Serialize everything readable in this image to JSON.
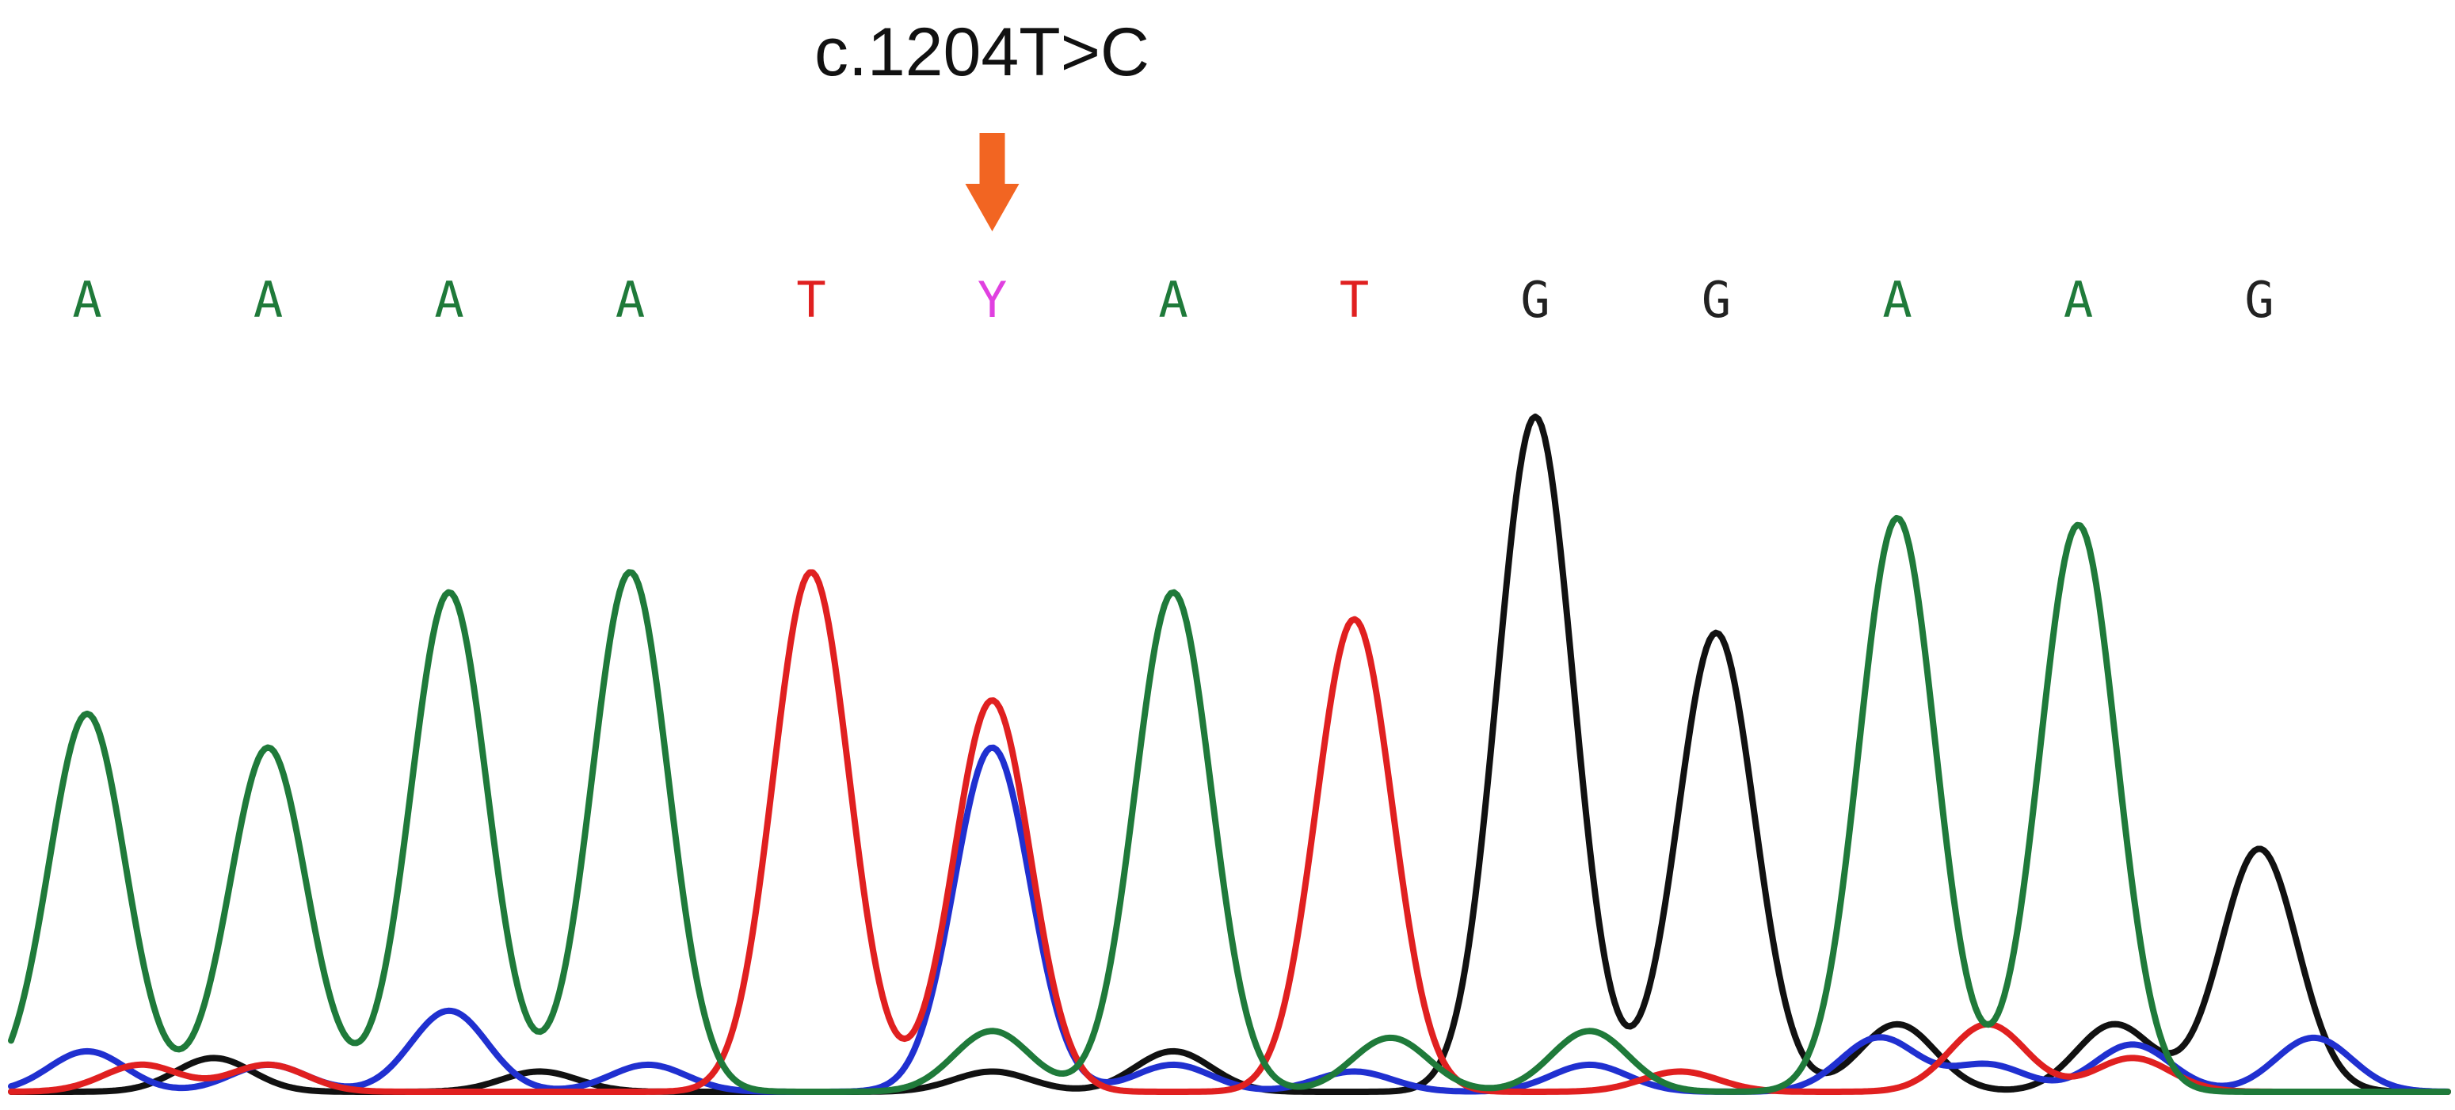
{
  "chart_data": {
    "type": "line",
    "annotation": {
      "label": "c.1204T>C",
      "arrow_color": "#f26522",
      "target_position": 6
    },
    "base_calls": [
      {
        "base": "A",
        "color": "#1f7a3a"
      },
      {
        "base": "A",
        "color": "#1f7a3a"
      },
      {
        "base": "A",
        "color": "#1f7a3a"
      },
      {
        "base": "A",
        "color": "#1f7a3a"
      },
      {
        "base": "T",
        "color": "#e02020"
      },
      {
        "base": "Y",
        "color": "#e040e0"
      },
      {
        "base": "A",
        "color": "#1f7a3a"
      },
      {
        "base": "T",
        "color": "#e02020"
      },
      {
        "base": "G",
        "color": "#222222"
      },
      {
        "base": "G",
        "color": "#222222"
      },
      {
        "base": "A",
        "color": "#1f7a3a"
      },
      {
        "base": "A",
        "color": "#1f7a3a"
      },
      {
        "base": "G",
        "color": "#222222"
      }
    ],
    "ylim": [
      0,
      1.0
    ],
    "series": [
      {
        "channel": "A",
        "color": "#1f7a3a",
        "peaks": [
          {
            "pos": 1,
            "height": 0.56
          },
          {
            "pos": 2,
            "height": 0.51
          },
          {
            "pos": 3,
            "height": 0.74
          },
          {
            "pos": 4,
            "height": 0.77
          },
          {
            "pos": 6,
            "height": 0.09
          },
          {
            "pos": 7,
            "height": 0.74
          },
          {
            "pos": 8.2,
            "height": 0.08
          },
          {
            "pos": 9.3,
            "height": 0.09
          },
          {
            "pos": 11,
            "height": 0.85
          },
          {
            "pos": 12,
            "height": 0.84
          }
        ]
      },
      {
        "channel": "T",
        "color": "#e02020",
        "peaks": [
          {
            "pos": 1.3,
            "height": 0.04
          },
          {
            "pos": 2,
            "height": 0.04
          },
          {
            "pos": 5,
            "height": 0.77
          },
          {
            "pos": 6,
            "height": 0.58
          },
          {
            "pos": 8,
            "height": 0.7
          },
          {
            "pos": 9.8,
            "height": 0.03
          },
          {
            "pos": 11.5,
            "height": 0.1
          },
          {
            "pos": 12.3,
            "height": 0.05
          }
        ]
      },
      {
        "channel": "C",
        "color": "#2030d0",
        "peaks": [
          {
            "pos": 1,
            "height": 0.06
          },
          {
            "pos": 2,
            "height": 0.04
          },
          {
            "pos": 3,
            "height": 0.12
          },
          {
            "pos": 4.1,
            "height": 0.04
          },
          {
            "pos": 6,
            "height": 0.51
          },
          {
            "pos": 7,
            "height": 0.04
          },
          {
            "pos": 8,
            "height": 0.03
          },
          {
            "pos": 9.3,
            "height": 0.04
          },
          {
            "pos": 10.9,
            "height": 0.08
          },
          {
            "pos": 11.5,
            "height": 0.04
          },
          {
            "pos": 12.3,
            "height": 0.07
          },
          {
            "pos": 13.3,
            "height": 0.08
          }
        ]
      },
      {
        "channel": "G",
        "color": "#111111",
        "peaks": [
          {
            "pos": 1.7,
            "height": 0.05
          },
          {
            "pos": 3.5,
            "height": 0.03
          },
          {
            "pos": 6,
            "height": 0.03
          },
          {
            "pos": 7,
            "height": 0.06
          },
          {
            "pos": 9,
            "height": 1.0
          },
          {
            "pos": 10,
            "height": 0.68
          },
          {
            "pos": 11,
            "height": 0.1
          },
          {
            "pos": 12.2,
            "height": 0.1
          },
          {
            "pos": 13,
            "height": 0.36
          }
        ]
      }
    ]
  }
}
